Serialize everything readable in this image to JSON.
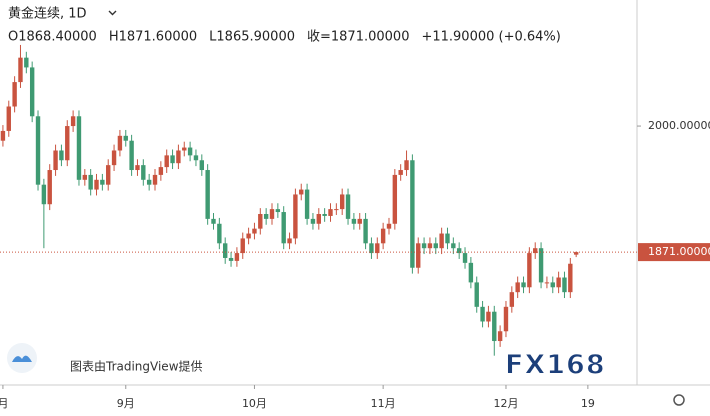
{
  "chart_data": {
    "type": "candlestick",
    "symbol": "黄金连续, 1D",
    "ohlc_legend": [
      "O1868.40000",
      "H1871.60000",
      "L1865.90000",
      "收=1871.00000",
      "+11.90000 (+0.64%)"
    ],
    "watermark": "图表由TradingView提供",
    "logo": "FX168",
    "up_color": "#c9533f",
    "down_color": "#3f9a72",
    "xlim": [
      -0.5,
      108.4
    ],
    "ylim": [
      1735,
      2129
    ],
    "yticks": [
      {
        "value": 2000,
        "label": "2000.00000"
      }
    ],
    "xticks": [
      {
        "value": 0,
        "label": "月"
      },
      {
        "value": 21,
        "label": "9月"
      },
      {
        "value": 43,
        "label": "10月"
      },
      {
        "value": 65,
        "label": "11月"
      },
      {
        "value": 86,
        "label": "12月"
      },
      {
        "value": 100,
        "label": "19"
      }
    ],
    "last_price": {
      "value": 1871,
      "label": "1871.00000"
    },
    "x": [
      0,
      1,
      2,
      3,
      4,
      5,
      6,
      7,
      8,
      9,
      10,
      11,
      12,
      13,
      14,
      15,
      16,
      17,
      18,
      19,
      20,
      21,
      22,
      23,
      24,
      25,
      26,
      27,
      28,
      29,
      30,
      31,
      32,
      33,
      34,
      35,
      36,
      37,
      38,
      39,
      40,
      41,
      42,
      43,
      44,
      45,
      46,
      47,
      48,
      49,
      50,
      51,
      52,
      53,
      54,
      55,
      56,
      57,
      58,
      59,
      60,
      61,
      62,
      63,
      64,
      65,
      66,
      67,
      68,
      69,
      70,
      71,
      72,
      73,
      74,
      75,
      76,
      77,
      78,
      79,
      80,
      81,
      82,
      83,
      84,
      85,
      86,
      87,
      88,
      89,
      90,
      91,
      92,
      93,
      94,
      95,
      96,
      97,
      98
    ],
    "open": [
      1985,
      1995,
      2020,
      2045,
      2070,
      2060,
      2010,
      1940,
      1920,
      1955,
      1975,
      1965,
      2000,
      2010,
      1945,
      1950,
      1935,
      1945,
      1940,
      1960,
      1975,
      1990,
      1985,
      1955,
      1960,
      1945,
      1940,
      1950,
      1958,
      1970,
      1962,
      1975,
      1978,
      1970,
      1965,
      1955,
      1905,
      1900,
      1880,
      1865,
      1862,
      1870,
      1885,
      1890,
      1895,
      1910,
      1905,
      1915,
      1912,
      1880,
      1885,
      1930,
      1935,
      1905,
      1900,
      1910,
      1908,
      1915,
      1915,
      1930,
      1905,
      1900,
      1905,
      1880,
      1870,
      1880,
      1895,
      1900,
      1950,
      1955,
      1965,
      1855,
      1880,
      1875,
      1880,
      1875,
      1890,
      1880,
      1875,
      1870,
      1860,
      1840,
      1815,
      1800,
      1810,
      1780,
      1790,
      1815,
      1830,
      1840,
      1835,
      1870,
      1875,
      1840,
      1840,
      1835,
      1845,
      1830,
      1868.4
    ],
    "high": [
      2001,
      2026,
      2051,
      2083,
      2076,
      2066,
      2016,
      1946,
      1961,
      1981,
      1981,
      2006,
      2016,
      2016,
      1956,
      1956,
      1951,
      1951,
      1966,
      1981,
      1996,
      1996,
      1991,
      1966,
      1966,
      1951,
      1956,
      1964,
      1976,
      1976,
      1981,
      1984,
      1984,
      1976,
      1971,
      1961,
      1911,
      1906,
      1886,
      1871,
      1876,
      1891,
      1896,
      1901,
      1916,
      1916,
      1921,
      1921,
      1918,
      1891,
      1936,
      1941,
      1941,
      1911,
      1916,
      1916,
      1921,
      1921,
      1936,
      1936,
      1911,
      1911,
      1911,
      1886,
      1886,
      1901,
      1906,
      1956,
      1961,
      1975,
      1971,
      1886,
      1886,
      1886,
      1886,
      1896,
      1896,
      1886,
      1881,
      1876,
      1866,
      1846,
      1821,
      1816,
      1816,
      1796,
      1821,
      1836,
      1846,
      1846,
      1876,
      1881,
      1881,
      1846,
      1846,
      1851,
      1851,
      1865,
      1871.6
    ],
    "low": [
      1979,
      1989,
      2014,
      2039,
      2054,
      2004,
      1934,
      1875,
      1914,
      1949,
      1959,
      1959,
      1994,
      1939,
      1939,
      1929,
      1929,
      1934,
      1934,
      1954,
      1969,
      1979,
      1949,
      1949,
      1939,
      1934,
      1934,
      1944,
      1952,
      1956,
      1956,
      1969,
      1964,
      1959,
      1949,
      1899,
      1894,
      1874,
      1859,
      1856,
      1856,
      1864,
      1879,
      1884,
      1889,
      1899,
      1899,
      1906,
      1874,
      1874,
      1879,
      1924,
      1899,
      1894,
      1894,
      1902,
      1902,
      1909,
      1909,
      1899,
      1894,
      1894,
      1874,
      1864,
      1864,
      1874,
      1889,
      1894,
      1944,
      1949,
      1849,
      1849,
      1869,
      1869,
      1869,
      1869,
      1874,
      1869,
      1864,
      1854,
      1834,
      1809,
      1794,
      1794,
      1765,
      1774,
      1784,
      1809,
      1824,
      1829,
      1829,
      1864,
      1834,
      1834,
      1829,
      1829,
      1824,
      1824,
      1865.9
    ],
    "close": [
      1995,
      2020,
      2045,
      2070,
      2060,
      2010,
      1940,
      1920,
      1955,
      1975,
      1965,
      2000,
      2010,
      1945,
      1950,
      1935,
      1945,
      1940,
      1960,
      1975,
      1990,
      1985,
      1955,
      1960,
      1945,
      1940,
      1950,
      1958,
      1970,
      1962,
      1975,
      1978,
      1970,
      1965,
      1955,
      1905,
      1900,
      1880,
      1865,
      1862,
      1870,
      1885,
      1890,
      1895,
      1910,
      1905,
      1915,
      1912,
      1880,
      1885,
      1930,
      1935,
      1905,
      1900,
      1910,
      1908,
      1915,
      1915,
      1930,
      1905,
      1900,
      1905,
      1880,
      1870,
      1880,
      1895,
      1900,
      1950,
      1955,
      1965,
      1855,
      1880,
      1875,
      1880,
      1875,
      1890,
      1880,
      1875,
      1870,
      1860,
      1840,
      1815,
      1800,
      1810,
      1780,
      1790,
      1815,
      1830,
      1840,
      1835,
      1870,
      1875,
      1840,
      1840,
      1835,
      1845,
      1830,
      1859.1,
      1871
    ]
  }
}
